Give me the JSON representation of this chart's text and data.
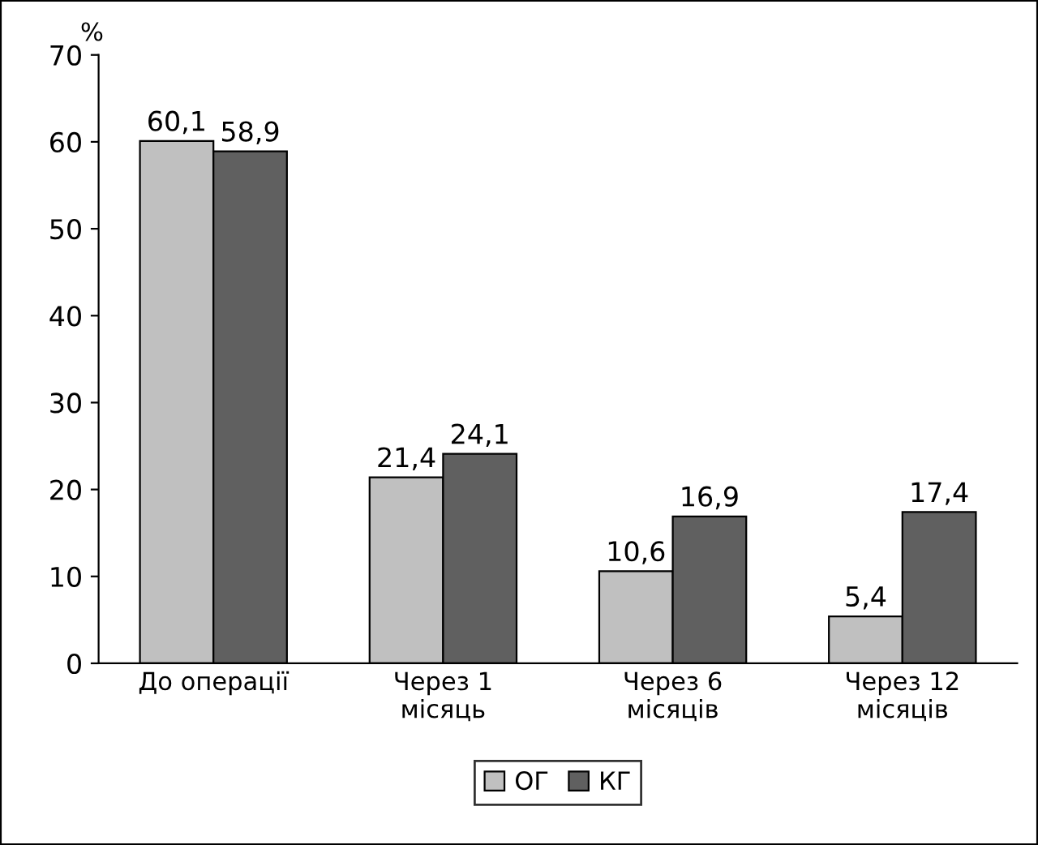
{
  "chart_data": {
    "type": "bar",
    "ylabel": "%",
    "categories": [
      "До операції",
      "Через 1\nмісяць",
      "Через 6\nмісяців",
      "Через 12\nмісяців"
    ],
    "series": [
      {
        "name": "ОГ",
        "color": "#c0c0c0",
        "values": [
          60.1,
          21.4,
          10.6,
          5.4
        ],
        "value_labels": [
          "60,1",
          "21,4",
          "10,6",
          "5,4"
        ]
      },
      {
        "name": "КГ",
        "color": "#606060",
        "values": [
          58.9,
          24.1,
          16.9,
          17.4
        ],
        "value_labels": [
          "58,9",
          "24,1",
          "16,9",
          "17,4"
        ]
      }
    ],
    "ylim": [
      0,
      70
    ],
    "yticks": [
      0,
      10,
      20,
      30,
      40,
      50,
      60,
      70
    ],
    "grid": false,
    "legend": "bottom"
  }
}
